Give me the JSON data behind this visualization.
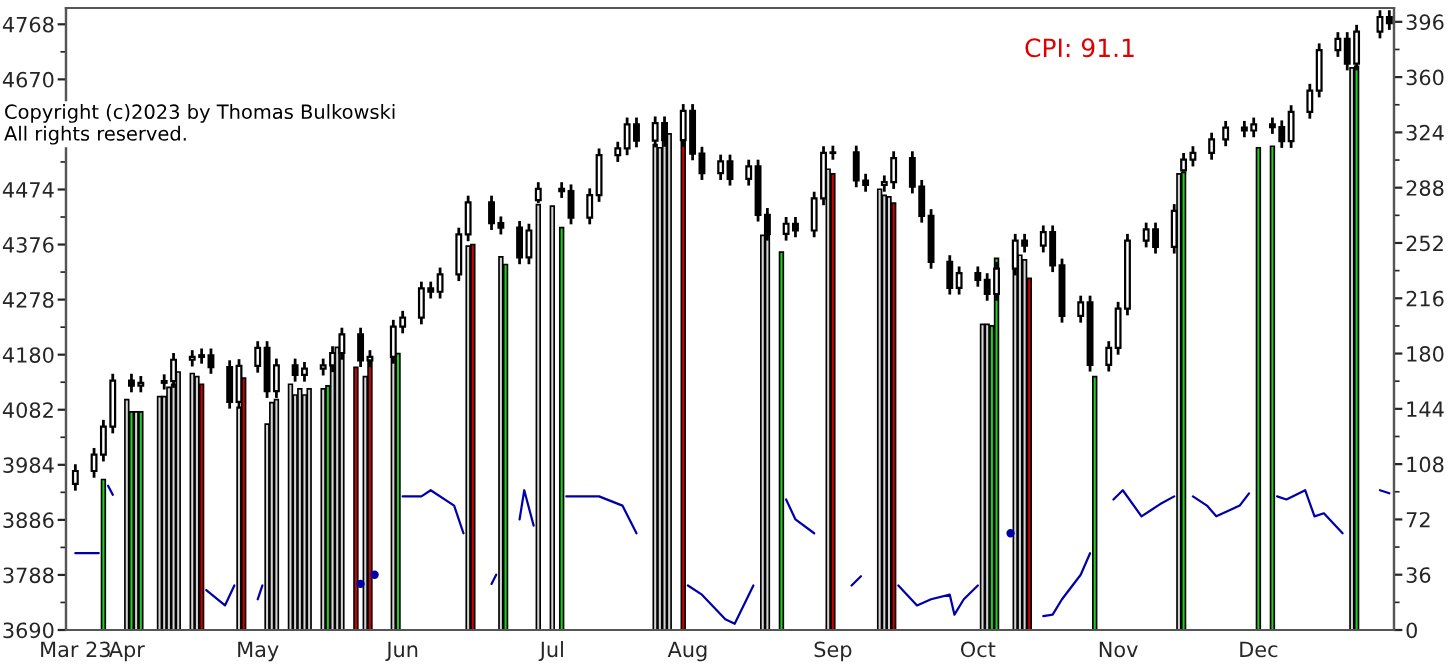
{
  "chart_data": {
    "type": "candlestick",
    "annotations": [
      "Copyright (c)2023 by Thomas Bulkowski\nAll rights reserved.",
      "CPI: 91.1"
    ],
    "x": [
      "2023-03-23",
      "2023-03-27",
      "2023-03-29",
      "2023-03-31",
      "2023-04-04",
      "2023-04-06",
      "2023-04-11",
      "2023-04-13",
      "2023-04-17",
      "2023-04-19",
      "2023-04-21",
      "2023-04-25",
      "2023-04-27",
      "2023-05-01",
      "2023-05-03",
      "2023-05-05",
      "2023-05-09",
      "2023-05-11",
      "2023-05-15",
      "2023-05-17",
      "2023-05-19",
      "2023-05-23",
      "2023-05-25",
      "2023-05-30",
      "2023-06-01",
      "2023-06-05",
      "2023-06-07",
      "2023-06-09",
      "2023-06-13",
      "2023-06-15",
      "2023-06-20",
      "2023-06-22",
      "2023-06-26",
      "2023-06-28",
      "2023-06-30",
      "2023-07-05",
      "2023-07-07",
      "2023-07-11",
      "2023-07-13",
      "2023-07-17",
      "2023-07-19",
      "2023-07-21",
      "2023-07-25",
      "2023-07-27",
      "2023-07-31",
      "2023-08-02",
      "2023-08-04",
      "2023-08-08",
      "2023-08-10",
      "2023-08-14",
      "2023-08-16",
      "2023-08-18",
      "2023-08-22",
      "2023-08-24",
      "2023-08-28",
      "2023-08-30",
      "2023-09-01",
      "2023-09-06",
      "2023-09-08",
      "2023-09-12",
      "2023-09-14",
      "2023-09-18",
      "2023-09-20",
      "2023-09-22",
      "2023-09-26",
      "2023-09-28",
      "2023-10-02",
      "2023-10-04",
      "2023-10-06",
      "2023-10-10",
      "2023-10-12",
      "2023-10-16",
      "2023-10-18",
      "2023-10-20",
      "2023-10-24",
      "2023-10-26",
      "2023-10-30",
      "2023-11-01",
      "2023-11-03",
      "2023-11-07",
      "2023-11-09",
      "2023-11-13",
      "2023-11-15",
      "2023-11-17",
      "2023-11-21",
      "2023-11-24",
      "2023-11-28",
      "2023-11-30",
      "2023-12-04",
      "2023-12-06",
      "2023-12-08",
      "2023-12-12",
      "2023-12-14",
      "2023-12-18",
      "2023-12-20",
      "2023-12-22",
      "2023-12-27",
      "2023-12-29"
    ],
    "ohlc": [
      [
        3950,
        3985,
        3938,
        3973
      ],
      [
        3973,
        4014,
        3961,
        4002
      ],
      [
        4002,
        4064,
        3990,
        4052
      ],
      [
        4052,
        4146,
        4040,
        4134
      ],
      [
        4134,
        4146,
        4113,
        4125
      ],
      [
        4125,
        4142,
        4113,
        4130
      ],
      [
        4130,
        4145,
        4118,
        4133
      ],
      [
        4133,
        4183,
        4121,
        4171
      ],
      [
        4171,
        4188,
        4159,
        4176
      ],
      [
        4176,
        4191,
        4164,
        4179
      ],
      [
        4179,
        4191,
        4146,
        4158
      ],
      [
        4158,
        4170,
        4084,
        4096
      ],
      [
        4096,
        4172,
        4084,
        4160
      ],
      [
        4160,
        4204,
        4148,
        4192
      ],
      [
        4192,
        4204,
        4103,
        4115
      ],
      [
        4115,
        4173,
        4103,
        4161
      ],
      [
        4161,
        4173,
        4132,
        4144
      ],
      [
        4144,
        4167,
        4132,
        4155
      ],
      [
        4155,
        4173,
        4143,
        4161
      ],
      [
        4161,
        4195,
        4149,
        4183
      ],
      [
        4183,
        4228,
        4171,
        4216
      ],
      [
        4216,
        4228,
        4158,
        4170
      ],
      [
        4170,
        4188,
        4158,
        4176
      ],
      [
        4176,
        4242,
        4164,
        4230
      ],
      [
        4230,
        4258,
        4218,
        4246
      ],
      [
        4246,
        4310,
        4234,
        4298
      ],
      [
        4298,
        4310,
        4280,
        4292
      ],
      [
        4292,
        4335,
        4280,
        4323
      ],
      [
        4323,
        4406,
        4311,
        4394
      ],
      [
        4394,
        4463,
        4382,
        4451
      ],
      [
        4451,
        4463,
        4402,
        4414
      ],
      [
        4414,
        4426,
        4394,
        4406
      ],
      [
        4406,
        4418,
        4341,
        4353
      ],
      [
        4353,
        4413,
        4341,
        4401
      ],
      [
        4455,
        4487,
        4450,
        4475
      ],
      [
        4475,
        4487,
        4459,
        4471
      ],
      [
        4471,
        4483,
        4412,
        4424
      ],
      [
        4424,
        4476,
        4412,
        4464
      ],
      [
        4464,
        4547,
        4452,
        4535
      ],
      [
        4535,
        4559,
        4523,
        4547
      ],
      [
        4547,
        4602,
        4535,
        4590
      ],
      [
        4590,
        4602,
        4549,
        4561
      ],
      [
        4561,
        4604,
        4549,
        4592
      ],
      [
        4592,
        4604,
        4550,
        4562
      ],
      [
        4562,
        4626,
        4550,
        4614
      ],
      [
        4614,
        4626,
        4526,
        4538
      ],
      [
        4538,
        4550,
        4491,
        4503
      ],
      [
        4503,
        4536,
        4491,
        4524
      ],
      [
        4524,
        4536,
        4481,
        4493
      ],
      [
        4493,
        4527,
        4481,
        4515
      ],
      [
        4515,
        4527,
        4417,
        4429
      ],
      [
        4429,
        4441,
        4383,
        4395
      ],
      [
        4395,
        4425,
        4383,
        4413
      ],
      [
        4413,
        4425,
        4389,
        4401
      ],
      [
        4401,
        4470,
        4389,
        4458
      ],
      [
        4458,
        4551,
        4446,
        4539
      ],
      [
        4539,
        4552,
        4527,
        4540
      ],
      [
        4540,
        4552,
        4478,
        4490
      ],
      [
        4490,
        4502,
        4470,
        4482
      ],
      [
        4482,
        4499,
        4470,
        4487
      ],
      [
        4487,
        4542,
        4475,
        4530
      ],
      [
        4530,
        4542,
        4467,
        4479
      ],
      [
        4479,
        4491,
        4415,
        4427
      ],
      [
        4427,
        4439,
        4333,
        4345
      ],
      [
        4345,
        4357,
        4287,
        4299
      ],
      [
        4299,
        4337,
        4287,
        4325
      ],
      [
        4325,
        4337,
        4301,
        4313
      ],
      [
        4313,
        4325,
        4276,
        4288
      ],
      [
        4288,
        4345,
        4276,
        4333
      ],
      [
        4333,
        4395,
        4321,
        4383
      ],
      [
        4383,
        4395,
        4362,
        4374
      ],
      [
        4374,
        4410,
        4362,
        4398
      ],
      [
        4398,
        4410,
        4327,
        4339
      ],
      [
        4339,
        4351,
        4237,
        4249
      ],
      [
        4249,
        4285,
        4237,
        4273
      ],
      [
        4273,
        4285,
        4150,
        4162
      ],
      [
        4162,
        4204,
        4150,
        4192
      ],
      [
        4192,
        4274,
        4180,
        4262
      ],
      [
        4262,
        4395,
        4250,
        4383
      ],
      [
        4383,
        4415,
        4371,
        4403
      ],
      [
        4403,
        4415,
        4360,
        4372
      ],
      [
        4372,
        4448,
        4360,
        4436
      ],
      [
        4508,
        4539,
        4506,
        4527
      ],
      [
        4527,
        4551,
        4515,
        4539
      ],
      [
        4539,
        4575,
        4527,
        4563
      ],
      [
        4563,
        4596,
        4551,
        4584
      ],
      [
        4584,
        4596,
        4567,
        4579
      ],
      [
        4579,
        4602,
        4567,
        4590
      ],
      [
        4590,
        4602,
        4573,
        4585
      ],
      [
        4585,
        4597,
        4548,
        4560
      ],
      [
        4560,
        4624,
        4548,
        4612
      ],
      [
        4612,
        4662,
        4600,
        4650
      ],
      [
        4650,
        4734,
        4638,
        4722
      ],
      [
        4722,
        4754,
        4710,
        4742
      ],
      [
        4742,
        4754,
        4686,
        4698
      ],
      [
        4698,
        4767,
        4686,
        4755
      ],
      [
        4755,
        4793,
        4743,
        4781
      ],
      [
        4781,
        4793,
        4758,
        4770
      ]
    ],
    "series": [
      {
        "type": "bar",
        "axis": "y2",
        "x": [
          "2023-03-29",
          "2023-04-03",
          "2023-04-04",
          "2023-04-05",
          "2023-04-06",
          "2023-04-10",
          "2023-04-11",
          "2023-04-12",
          "2023-04-13",
          "2023-04-14",
          "2023-04-17",
          "2023-04-18",
          "2023-04-19",
          "2023-04-27",
          "2023-04-28",
          "2023-05-03",
          "2023-05-04",
          "2023-05-05",
          "2023-05-08",
          "2023-05-09",
          "2023-05-10",
          "2023-05-11",
          "2023-05-12",
          "2023-05-15",
          "2023-05-16",
          "2023-05-17",
          "2023-05-18",
          "2023-05-19",
          "2023-05-22",
          "2023-05-24",
          "2023-05-25",
          "2023-05-30",
          "2023-05-31",
          "2023-06-15",
          "2023-06-16",
          "2023-06-22",
          "2023-06-23",
          "2023-06-30",
          "2023-07-03",
          "2023-07-05",
          "2023-07-25",
          "2023-07-26",
          "2023-07-27",
          "2023-07-28",
          "2023-07-31",
          "2023-08-17",
          "2023-08-18",
          "2023-08-21",
          "2023-08-31",
          "2023-09-01",
          "2023-09-11",
          "2023-09-12",
          "2023-09-13",
          "2023-09-14",
          "2023-10-03",
          "2023-10-04",
          "2023-10-05",
          "2023-10-06",
          "2023-10-10",
          "2023-10-11",
          "2023-10-12",
          "2023-10-13",
          "2023-10-27",
          "2023-11-14",
          "2023-11-15",
          "2023-12-01",
          "2023-12-04",
          "2023-12-21",
          "2023-12-22"
        ],
        "values": [
          98,
          150,
          142,
          142,
          142,
          152,
          152,
          158,
          160,
          168,
          167,
          165,
          160,
          145,
          164,
          134,
          148,
          150,
          160,
          153,
          157,
          153,
          157,
          157,
          159,
          174,
          184,
          184,
          171,
          165,
          176,
          178,
          180,
          250,
          251,
          243,
          238,
          277,
          276,
          262,
          316,
          314,
          320,
          323,
          320,
          257,
          257,
          246,
          300,
          297,
          287,
          283,
          282,
          278,
          199,
          199,
          198,
          242,
          237,
          244,
          241,
          229,
          165,
          297,
          298,
          314,
          315,
          366,
          367
        ],
        "colors": [
          "#22cc22",
          "#d4d4d4",
          "#22cc22",
          "#d4d4d4",
          "#22cc22",
          "#d4d4d4",
          "#d4d4d4",
          "#d4d4d4",
          "#d4d4d4",
          "#d4d4d4",
          "#d4d4d4",
          "#d4d4d4",
          "#cc0000",
          "#d4d4d4",
          "#cc0000",
          "#d4d4d4",
          "#d4d4d4",
          "#d4d4d4",
          "#d4d4d4",
          "#d4d4d4",
          "#d4d4d4",
          "#d4d4d4",
          "#d4d4d4",
          "#d4d4d4",
          "#22cc22",
          "#d4d4d4",
          "#d4d4d4",
          "#d4d4d4",
          "#cc0000",
          "#d4d4d4",
          "#cc0000",
          "#d4d4d4",
          "#22cc22",
          "#d4d4d4",
          "#cc0000",
          "#d4d4d4",
          "#22cc22",
          "#d4d4d4",
          "#d4d4d4",
          "#22cc22",
          "#d4d4d4",
          "#d4d4d4",
          "#d4d4d4",
          "#d4d4d4",
          "#cc0000",
          "#d4d4d4",
          "#d4d4d4",
          "#22cc22",
          "#d4d4d4",
          "#cc0000",
          "#d4d4d4",
          "#d4d4d4",
          "#d4d4d4",
          "#cc0000",
          "#d4d4d4",
          "#d4d4d4",
          "#22cc22",
          "#22cc22",
          "#d4d4d4",
          "#d4d4d4",
          "#d4d4d4",
          "#cc0000",
          "#22cc22",
          "#d4d4d4",
          "#22cc22",
          "#22cc22",
          "#22cc22",
          "#d4d4d4",
          "#22cc22"
        ]
      },
      {
        "type": "line",
        "axis": "y2",
        "color": "#0000aa",
        "x": [
          "2023-03-23",
          "2023-03-27",
          "2023-03-28",
          "2023-03-29",
          "2023-03-30",
          "2023-03-31",
          "2023-04-10",
          "2023-04-20",
          "2023-04-24",
          "2023-04-26",
          "2023-04-27",
          "2023-05-01",
          "2023-05-02",
          "2023-05-03",
          "2023-05-23",
          "2023-05-24",
          "2023-05-26",
          "2023-05-30",
          "2023-06-01",
          "2023-06-05",
          "2023-06-07",
          "2023-06-12",
          "2023-06-14",
          "2023-06-15",
          "2023-06-20",
          "2023-06-21",
          "2023-06-22",
          "2023-06-26",
          "2023-06-27",
          "2023-06-29",
          "2023-06-30",
          "2023-07-06",
          "2023-07-10",
          "2023-07-13",
          "2023-07-18",
          "2023-07-21",
          "2023-07-25",
          "2023-08-01",
          "2023-08-04",
          "2023-08-09",
          "2023-08-11",
          "2023-08-15",
          "2023-08-17",
          "2023-08-22",
          "2023-08-24",
          "2023-08-28",
          "2023-08-31",
          "2023-09-05",
          "2023-09-07",
          "2023-09-11",
          "2023-09-15",
          "2023-09-19",
          "2023-09-22",
          "2023-09-26",
          "2023-09-27",
          "2023-09-29",
          "2023-10-02",
          "2023-10-03",
          "2023-10-09",
          "2023-10-10",
          "2023-10-16",
          "2023-10-18",
          "2023-10-20",
          "2023-10-24",
          "2023-10-26",
          "2023-10-27",
          "2023-10-31",
          "2023-11-02",
          "2023-11-06",
          "2023-11-08",
          "2023-11-10",
          "2023-11-13",
          "2023-11-14",
          "2023-11-17",
          "2023-11-20",
          "2023-11-22",
          "2023-11-27",
          "2023-11-29",
          "2023-12-01",
          "2023-12-05",
          "2023-12-07",
          "2023-12-11",
          "2023-12-13",
          "2023-12-15",
          "2023-12-19",
          "2023-12-21",
          "2023-12-27",
          "2023-12-29"
        ],
        "values": [
          50,
          50,
          50,
          null,
          94,
          88,
          null,
          26,
          16,
          29,
          null,
          20,
          29,
          null,
          30,
          null,
          36,
          null,
          87,
          87,
          91,
          81,
          63,
          null,
          30,
          36,
          null,
          72,
          91,
          68,
          null,
          87,
          87,
          87,
          81,
          63,
          null,
          29,
          23,
          7,
          4,
          29,
          null,
          85,
          72,
          63,
          null,
          29,
          35,
          null,
          29,
          16,
          20,
          23,
          10,
          20,
          29,
          null,
          63,
          null,
          9,
          10,
          20,
          36,
          50,
          null,
          85,
          91,
          74,
          78,
          82,
          87,
          null,
          87,
          81,
          74,
          81,
          89,
          null,
          87,
          85,
          91,
          74,
          76,
          63,
          null,
          91,
          89
        ]
      }
    ],
    "xlim": [
      "2023-03-21",
      "2023-12-30"
    ],
    "xticks": [
      {
        "value": "2023-03-23",
        "label": "Mar 23"
      },
      {
        "value": "2023-04-03",
        "label": "Apr"
      },
      {
        "value": "2023-05-01",
        "label": "May"
      },
      {
        "value": "2023-06-01",
        "label": "Jun"
      },
      {
        "value": "2023-07-03",
        "label": "Jul"
      },
      {
        "value": "2023-08-01",
        "label": "Aug"
      },
      {
        "value": "2023-09-01",
        "label": "Sep"
      },
      {
        "value": "2023-10-02",
        "label": "Oct"
      },
      {
        "value": "2023-11-01",
        "label": "Nov"
      },
      {
        "value": "2023-12-01",
        "label": "Dec"
      }
    ],
    "ylim": [
      3690,
      4797
    ],
    "yticks": [
      3690,
      3788,
      3886,
      3984,
      4082,
      4180,
      4278,
      4376,
      4474,
      {
        "value": 4572,
        "label": null
      },
      4670,
      4768
    ],
    "y2lim": [
      0,
      405
    ],
    "y2ticks": [
      0,
      36,
      72,
      108,
      144,
      180,
      216,
      252,
      288,
      324,
      360,
      396
    ]
  }
}
